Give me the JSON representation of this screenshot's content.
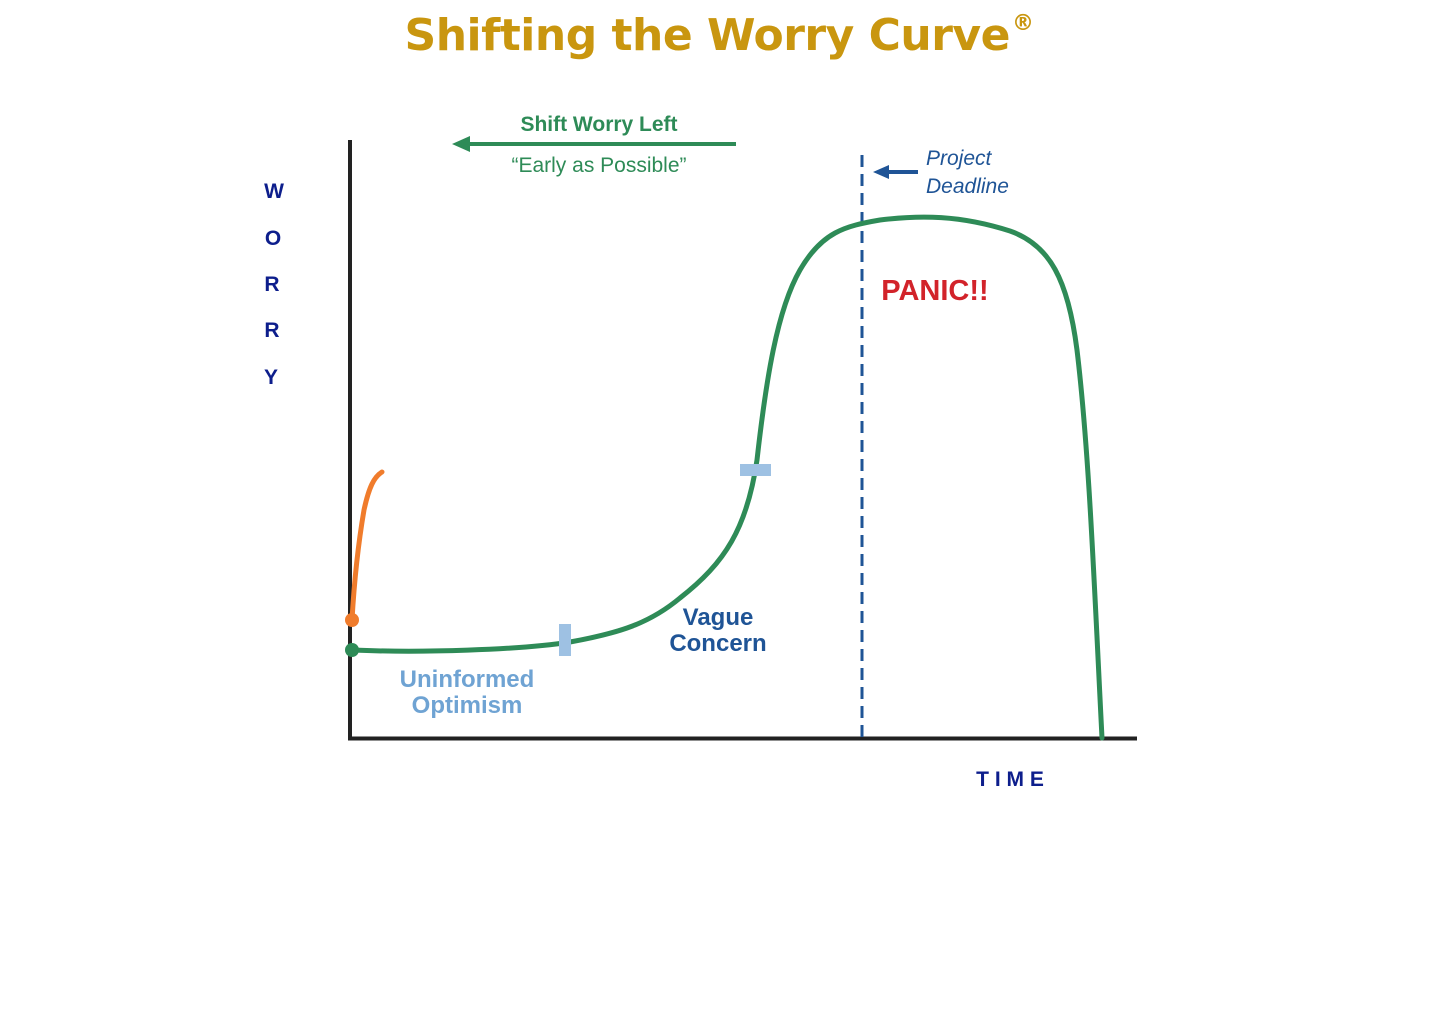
{
  "title": "Shifting the Worry Curve",
  "title_mark": "®",
  "shift": {
    "label": "Shift Worry Left",
    "subtitle": "“Early as Possible”"
  },
  "deadline": {
    "line1": "Project",
    "line2": "Deadline"
  },
  "phases": {
    "panic": "PANIC!!",
    "vague_line1": "Vague",
    "vague_line2": "Concern",
    "uninformed_line1": "Uninformed",
    "uninformed_line2": "Optimism"
  },
  "axes": {
    "y_letters": [
      "W",
      "O",
      "R",
      "R",
      "Y"
    ],
    "x_label": "T I M E"
  },
  "colors": {
    "title": "#C9960F",
    "curve": "#2E8B57",
    "early_curve": "#F07C2C",
    "deadline": "#1F5496",
    "panic": "#D2232A",
    "vague": "#1F5496",
    "uninformed": "#6FA3D3",
    "axis_label": "#0D1E8C",
    "marker": "#9EC1E3"
  }
}
